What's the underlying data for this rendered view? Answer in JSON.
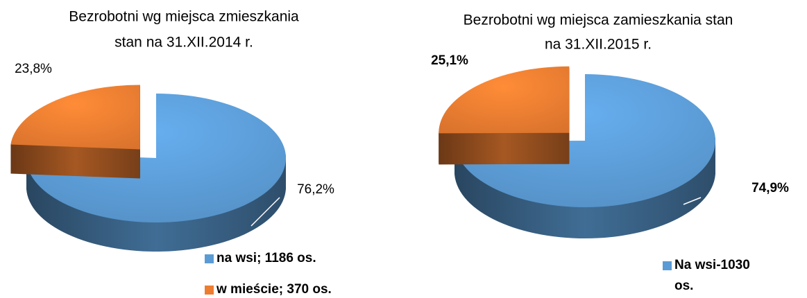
{
  "chart_data": [
    {
      "type": "pie",
      "title": [
        "Bezrobotni wg miejsca zmieszkania",
        "stan na 31.XII.2014 r."
      ],
      "categories": [
        "na wsi; 1186 os.",
        "w mieście; 370 os."
      ],
      "values": [
        76.2,
        23.8
      ],
      "value_labels": [
        "76,2%",
        "23,8%"
      ],
      "colors": [
        "#5b9bd5",
        "#ed7d31"
      ]
    },
    {
      "type": "pie",
      "title": [
        "Bezrobotni wg miejsca zamieszkania stan",
        "na 31.XII.2015 r."
      ],
      "categories": [
        "Na wsi-1030 os.",
        null
      ],
      "values": [
        74.9,
        25.1
      ],
      "value_labels": [
        "74,9%",
        "25,1%"
      ],
      "colors": [
        "#5b9bd5",
        "#ed7d31"
      ]
    }
  ]
}
